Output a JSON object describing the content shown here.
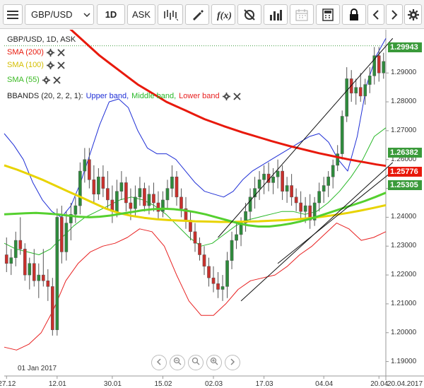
{
  "toolbar": {
    "symbol": "GBP/USD",
    "timeframe": "1D",
    "price_type": "ASK",
    "icons": [
      "menu-icon",
      "chevron-down-icon",
      "chart-style-icon",
      "draw-icon",
      "fx-icon",
      "settings-reset-icon",
      "volume-bars-icon",
      "calendar-icon",
      "calculator-icon",
      "lock-icon",
      "prev-icon",
      "next-icon",
      "gear-icon"
    ]
  },
  "legend": {
    "instrument": "GBP/USD, 1D, ASK",
    "sma200": "SMA (200)",
    "sma100": "SMA (100)",
    "sma55": "SMA (55)",
    "bbands_name": "BBANDS (20, 2, 2, 1):",
    "bb_upper": "Upper band,",
    "bb_middle": "Middle band,",
    "bb_lower": "Lower band"
  },
  "colors": {
    "sma200": "#e8190c",
    "sma100": "#e8d300",
    "sma55": "#55d02f",
    "bb_upper": "#1f2fd6",
    "bb_middle": "#28b828",
    "bb_lower": "#e82020",
    "candle_up": "#2e8b3c",
    "candle_down": "#c9302c"
  },
  "price_tags": [
    {
      "value": "1.29943",
      "color": "#3a9a3a"
    },
    {
      "value": "1.26382",
      "color": "#3a9a3a"
    },
    {
      "value": "1.25776",
      "color": "#e8190c"
    },
    {
      "value": "1.25305",
      "color": "#3a9a3a"
    }
  ],
  "y_axis_labels": [
    "1.29000",
    "1.28000",
    "1.27000",
    "1.26000",
    "1.25000",
    "1.24000",
    "1.23000",
    "1.22000",
    "1.21000",
    "1.20000",
    "1.19000"
  ],
  "x_axis_labels": [
    "27.12",
    "12.01",
    "30.01",
    "15.02",
    "02.03",
    "17.03",
    "04.04",
    "20.04",
    "20.04.2017"
  ],
  "start_date_label": "01 Jan 2017",
  "chart_data": {
    "type": "candlestick",
    "ylim": [
      1.185,
      1.305
    ],
    "current_price": 1.29943,
    "x_ticks": [
      {
        "label": "27.12",
        "i": 0
      },
      {
        "label": "12.01",
        "i": 11
      },
      {
        "label": "30.01",
        "i": 23
      },
      {
        "label": "15.02",
        "i": 34
      },
      {
        "label": "02.03",
        "i": 45
      },
      {
        "label": "17.03",
        "i": 56
      },
      {
        "label": "04.04",
        "i": 69
      },
      {
        "label": "20.04",
        "i": 81
      }
    ],
    "candles": [
      [
        1.227,
        1.233,
        1.221,
        1.224
      ],
      [
        1.224,
        1.229,
        1.22,
        1.226
      ],
      [
        1.226,
        1.235,
        1.223,
        1.232
      ],
      [
        1.232,
        1.24,
        1.227,
        1.229
      ],
      [
        1.229,
        1.231,
        1.218,
        1.22
      ],
      [
        1.22,
        1.226,
        1.215,
        1.224
      ],
      [
        1.224,
        1.229,
        1.216,
        1.218
      ],
      [
        1.218,
        1.224,
        1.212,
        1.22
      ],
      [
        1.22,
        1.229,
        1.216,
        1.218
      ],
      [
        1.218,
        1.222,
        1.211,
        1.216
      ],
      [
        1.216,
        1.219,
        1.199,
        1.201
      ],
      [
        1.201,
        1.243,
        1.199,
        1.24
      ],
      [
        1.24,
        1.244,
        1.224,
        1.228
      ],
      [
        1.228,
        1.242,
        1.225,
        1.238
      ],
      [
        1.238,
        1.245,
        1.232,
        1.241
      ],
      [
        1.241,
        1.247,
        1.238,
        1.244
      ],
      [
        1.244,
        1.259,
        1.241,
        1.256
      ],
      [
        1.256,
        1.264,
        1.252,
        1.26
      ],
      [
        1.26,
        1.264,
        1.25,
        1.253
      ],
      [
        1.253,
        1.258,
        1.245,
        1.248
      ],
      [
        1.248,
        1.257,
        1.246,
        1.254
      ],
      [
        1.254,
        1.258,
        1.247,
        1.25
      ],
      [
        1.25,
        1.256,
        1.243,
        1.246
      ],
      [
        1.246,
        1.251,
        1.238,
        1.242
      ],
      [
        1.242,
        1.253,
        1.24,
        1.249
      ],
      [
        1.249,
        1.256,
        1.246,
        1.252
      ],
      [
        1.252,
        1.254,
        1.242,
        1.245
      ],
      [
        1.245,
        1.25,
        1.239,
        1.243
      ],
      [
        1.243,
        1.251,
        1.24,
        1.247
      ],
      [
        1.247,
        1.254,
        1.244,
        1.25
      ],
      [
        1.25,
        1.252,
        1.242,
        1.244
      ],
      [
        1.244,
        1.251,
        1.241,
        1.248
      ],
      [
        1.248,
        1.252,
        1.242,
        1.245
      ],
      [
        1.245,
        1.249,
        1.239,
        1.242
      ],
      [
        1.242,
        1.249,
        1.24,
        1.246
      ],
      [
        1.246,
        1.253,
        1.243,
        1.25
      ],
      [
        1.25,
        1.258,
        1.247,
        1.254
      ],
      [
        1.254,
        1.256,
        1.244,
        1.247
      ],
      [
        1.247,
        1.25,
        1.24,
        1.243
      ],
      [
        1.243,
        1.247,
        1.236,
        1.239
      ],
      [
        1.239,
        1.242,
        1.232,
        1.235
      ],
      [
        1.235,
        1.238,
        1.228,
        1.231
      ],
      [
        1.231,
        1.233,
        1.225,
        1.227
      ],
      [
        1.227,
        1.23,
        1.22,
        1.223
      ],
      [
        1.223,
        1.226,
        1.216,
        1.219
      ],
      [
        1.219,
        1.223,
        1.214,
        1.217
      ],
      [
        1.217,
        1.221,
        1.212,
        1.215
      ],
      [
        1.215,
        1.22,
        1.211,
        1.216
      ],
      [
        1.216,
        1.228,
        1.212,
        1.225
      ],
      [
        1.225,
        1.235,
        1.222,
        1.232
      ],
      [
        1.232,
        1.238,
        1.229,
        1.234
      ],
      [
        1.234,
        1.24,
        1.23,
        1.238
      ],
      [
        1.238,
        1.245,
        1.235,
        1.242
      ],
      [
        1.242,
        1.25,
        1.239,
        1.247
      ],
      [
        1.247,
        1.254,
        1.243,
        1.25
      ],
      [
        1.25,
        1.256,
        1.246,
        1.253
      ],
      [
        1.253,
        1.258,
        1.248,
        1.255
      ],
      [
        1.255,
        1.259,
        1.249,
        1.252
      ],
      [
        1.252,
        1.257,
        1.248,
        1.254
      ],
      [
        1.254,
        1.26,
        1.25,
        1.256
      ],
      [
        1.256,
        1.258,
        1.246,
        1.249
      ],
      [
        1.249,
        1.254,
        1.245,
        1.251
      ],
      [
        1.251,
        1.255,
        1.244,
        1.247
      ],
      [
        1.247,
        1.25,
        1.242,
        1.245
      ],
      [
        1.245,
        1.249,
        1.239,
        1.242
      ],
      [
        1.242,
        1.247,
        1.238,
        1.244
      ],
      [
        1.244,
        1.248,
        1.236,
        1.239
      ],
      [
        1.239,
        1.247,
        1.237,
        1.245
      ],
      [
        1.245,
        1.252,
        1.242,
        1.249
      ],
      [
        1.249,
        1.254,
        1.245,
        1.251
      ],
      [
        1.251,
        1.256,
        1.247,
        1.254
      ],
      [
        1.254,
        1.26,
        1.25,
        1.258
      ],
      [
        1.258,
        1.265,
        1.256,
        1.262
      ],
      [
        1.262,
        1.277,
        1.26,
        1.275
      ],
      [
        1.275,
        1.292,
        1.273,
        1.288
      ],
      [
        1.288,
        1.291,
        1.28,
        1.283
      ],
      [
        1.283,
        1.288,
        1.279,
        1.285
      ],
      [
        1.285,
        1.29,
        1.28,
        1.282
      ],
      [
        1.282,
        1.288,
        1.279,
        1.286
      ],
      [
        1.286,
        1.292,
        1.283,
        1.289
      ],
      [
        1.289,
        1.299,
        1.286,
        1.296
      ],
      [
        1.296,
        1.299,
        1.287,
        1.29
      ],
      [
        1.29,
        1.297,
        1.288,
        1.294
      ]
    ],
    "sma200": [
      1.326,
      1.323,
      1.32,
      1.317,
      1.314,
      1.311,
      1.308,
      1.305,
      1.302,
      1.299,
      1.296,
      1.2935,
      1.291,
      1.2885,
      1.286,
      1.284,
      1.282,
      1.28,
      1.2785,
      1.277,
      1.2755,
      1.274,
      1.2728,
      1.2716,
      1.2705,
      1.2694,
      1.2684,
      1.2674,
      1.2664,
      1.2655,
      1.2646,
      1.2638,
      1.263,
      1.2622,
      1.2615,
      1.2608,
      1.2601,
      1.2595,
      1.2589,
      1.2583,
      1.2578
    ],
    "sma100": [
      1.258,
      1.2565,
      1.2548,
      1.253,
      1.251,
      1.249,
      1.247,
      1.245,
      1.243,
      1.2415,
      1.2405,
      1.2398,
      1.2393,
      1.239,
      1.2388,
      1.2386,
      1.2385,
      1.2384,
      1.2384,
      1.2385,
      1.2386,
      1.2388,
      1.239,
      1.2393,
      1.2397,
      1.2402,
      1.2408,
      1.2415,
      1.2423,
      1.2432,
      1.2442
    ],
    "sma55": [
      1.241,
      1.2412,
      1.2414,
      1.2415,
      1.2413,
      1.241,
      1.2406,
      1.2402,
      1.24,
      1.2402,
      1.2406,
      1.2412,
      1.2418,
      1.2424,
      1.2428,
      1.243,
      1.2428,
      1.2424,
      1.2418,
      1.241,
      1.24,
      1.239,
      1.238,
      1.2372,
      1.2368,
      1.2368,
      1.2372,
      1.2378,
      1.2386,
      1.2396,
      1.2408,
      1.242,
      1.2432,
      1.2444,
      1.2456,
      1.247,
      1.2485
    ],
    "bb_upper": [
      1.269,
      1.265,
      1.26,
      1.252,
      1.246,
      1.242,
      1.24,
      1.244,
      1.252,
      1.262,
      1.272,
      1.28,
      1.281,
      1.278,
      1.27,
      1.264,
      1.262,
      1.262,
      1.26,
      1.256,
      1.252,
      1.249,
      1.248,
      1.247,
      1.249,
      1.253,
      1.256,
      1.258,
      1.26,
      1.262,
      1.264,
      1.266,
      1.268,
      1.269,
      1.266,
      1.26,
      1.256,
      1.268,
      1.286,
      1.296,
      1.302
    ],
    "bb_middle": [
      1.231,
      1.229,
      1.228,
      1.227,
      1.229,
      1.233,
      1.237,
      1.24,
      1.242,
      1.244,
      1.246,
      1.247,
      1.246,
      1.244,
      1.241,
      1.237,
      1.233,
      1.23,
      1.231,
      1.234,
      1.237,
      1.239,
      1.24,
      1.241,
      1.242,
      1.242,
      1.241,
      1.242,
      1.245,
      1.249,
      1.254,
      1.26,
      1.268,
      1.271
    ],
    "bb_lower": [
      1.195,
      1.194,
      1.196,
      1.2,
      1.208,
      1.218,
      1.224,
      1.228,
      1.23,
      1.231,
      1.233,
      1.236,
      1.235,
      1.23,
      1.22,
      1.211,
      1.206,
      1.206,
      1.21,
      1.215,
      1.218,
      1.219,
      1.22,
      1.223,
      1.227,
      1.23,
      1.234,
      1.238,
      1.236,
      1.232,
      1.233,
      1.235
    ],
    "channel_lines": [
      {
        "from": {
          "i": 46,
          "v": 1.233
        },
        "to": {
          "i": 84,
          "v": 1.302
        }
      },
      {
        "from": {
          "i": 51,
          "v": 1.211
        },
        "to": {
          "i": 84,
          "v": 1.259
        }
      },
      {
        "from": {
          "i": 59,
          "v": 1.224
        },
        "to": {
          "i": 84,
          "v": 1.256
        }
      }
    ]
  }
}
